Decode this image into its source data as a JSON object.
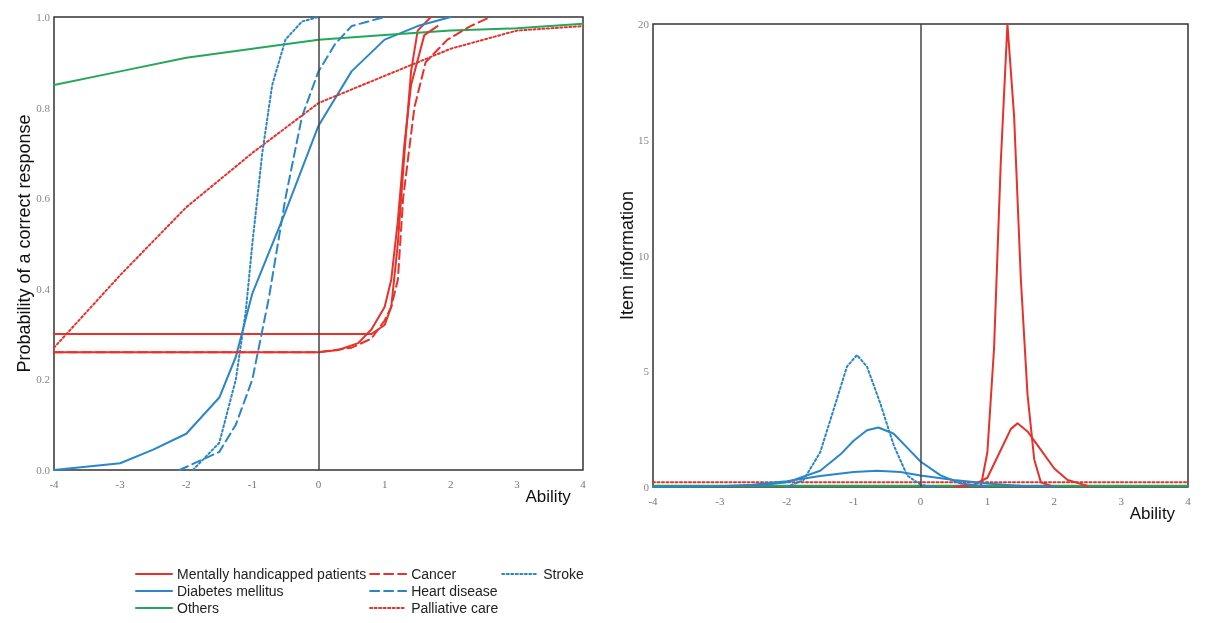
{
  "chart_data": [
    {
      "type": "line",
      "ylabel": "Probability of a correct response",
      "xlabel": "Ability",
      "xlim": [
        -4,
        4
      ],
      "xticks": [
        -4,
        -3,
        -2,
        -1,
        0,
        1,
        2,
        3,
        4
      ],
      "ylim": [
        0,
        1
      ],
      "yticks": [
        {
          "value": 0,
          "label": "0.0"
        },
        0.2,
        0.4,
        0.6,
        0.8,
        {
          "value": 1,
          "label": "1.0"
        }
      ],
      "legend": "bottom",
      "marker": "none",
      "grid": false,
      "series": [
        {
          "name": "Mentally handicapped patients",
          "color": "#e8312a",
          "line_style": "solid",
          "x": [
            -4,
            0,
            0.8,
            1.0,
            1.1,
            1.2,
            1.3,
            1.4,
            1.5,
            1.7
          ],
          "values": [
            0.3,
            0.3,
            0.3,
            0.32,
            0.36,
            0.5,
            0.7,
            0.88,
            0.97,
            1.0
          ]
        },
        {
          "name": "Diabetes mellitus",
          "color": "#2a86c8",
          "line_style": "solid",
          "x": [
            -4,
            -3,
            -2.5,
            -2,
            -1.5,
            -1.25,
            -1,
            -0.5,
            0,
            0.5,
            1,
            1.5,
            2
          ],
          "values": [
            0,
            0.015,
            0.045,
            0.08,
            0.16,
            0.25,
            0.39,
            0.57,
            0.76,
            0.88,
            0.95,
            0.98,
            1.0
          ]
        },
        {
          "name": "Others",
          "color": "#23a85a",
          "line_style": "solid",
          "x": [
            -4,
            -3,
            -2,
            -1,
            0,
            1,
            2,
            3,
            4
          ],
          "values": [
            0.85,
            0.88,
            0.91,
            0.93,
            0.95,
            0.96,
            0.97,
            0.975,
            0.985
          ]
        },
        {
          "name": "Cancer",
          "color": "#e8312a",
          "line_style": "dashed",
          "x": [
            -4,
            0,
            0.5,
            0.8,
            1.0,
            1.1,
            1.2,
            1.28,
            1.45,
            1.62,
            1.95,
            2.3,
            2.6
          ],
          "values": [
            0.26,
            0.26,
            0.27,
            0.29,
            0.33,
            0.36,
            0.42,
            0.6,
            0.8,
            0.9,
            0.95,
            0.98,
            1.0
          ]
        },
        {
          "name": "Heart disease",
          "color": "#2a86c8",
          "line_style": "dashed",
          "x": [
            -2.1,
            -1.5,
            -1.25,
            -1,
            -0.75,
            -0.5,
            -0.25,
            0,
            0.25,
            0.5,
            1
          ],
          "values": [
            0,
            0.04,
            0.1,
            0.2,
            0.38,
            0.6,
            0.78,
            0.88,
            0.94,
            0.98,
            1.0
          ]
        },
        {
          "name": "Palliative care",
          "color": "#e8312a",
          "line_style": "dotted",
          "x": [
            -4,
            -3,
            -2,
            -1,
            0,
            1,
            2,
            3,
            4
          ],
          "values": [
            0.27,
            0.43,
            0.58,
            0.7,
            0.81,
            0.87,
            0.93,
            0.97,
            0.98
          ]
        },
        {
          "name": "Stroke",
          "color": "#2a86c8",
          "line_style": "dotted",
          "x": [
            -1.9,
            -1.5,
            -1.25,
            -1.1,
            -1,
            -0.85,
            -0.7,
            -0.5,
            -0.25,
            0
          ],
          "values": [
            0,
            0.06,
            0.2,
            0.35,
            0.5,
            0.7,
            0.85,
            0.95,
            0.99,
            1.0
          ]
        },
        {
          "color": "#e8312a",
          "line_style": "solid",
          "x": [
            -4,
            0,
            0.3,
            0.6,
            0.8,
            1.0,
            1.1,
            1.2,
            1.3,
            1.4,
            1.6,
            1.8
          ],
          "values": [
            0.26,
            0.26,
            0.265,
            0.28,
            0.31,
            0.36,
            0.42,
            0.55,
            0.72,
            0.85,
            0.96,
            0.98
          ]
        }
      ],
      "ref_lines": [
        {
          "axis": "x",
          "value": 0
        }
      ]
    },
    {
      "type": "line",
      "ylabel": "Item information",
      "xlabel": "Ability",
      "xlim": [
        -4,
        4
      ],
      "xticks": [
        -4,
        -3,
        -2,
        -1,
        0,
        1,
        2,
        3,
        4
      ],
      "ylim": [
        0,
        20
      ],
      "yticks": [
        0,
        5,
        10,
        15,
        20
      ],
      "legend": false,
      "marker": "none",
      "grid": false,
      "series": [
        {
          "color": "#23a85a",
          "line_style": "solid",
          "x": [
            -4,
            -2,
            0,
            2,
            4
          ],
          "values": [
            0.05,
            0.05,
            0.05,
            0.05,
            0.05
          ]
        },
        {
          "color": "#e8312a",
          "line_style": "dotted",
          "x": [
            -4,
            -2,
            0,
            2,
            4
          ],
          "values": [
            0.2,
            0.2,
            0.2,
            0.2,
            0.2
          ]
        },
        {
          "color": "#e8312a",
          "line_style": "solid",
          "x": [
            0.9,
            1.0,
            1.1,
            1.2,
            1.3,
            1.4,
            1.5,
            1.6,
            1.7,
            1.8,
            2
          ],
          "values": [
            0,
            1.5,
            6,
            14,
            20,
            16,
            9,
            4,
            1.2,
            0.2,
            0
          ]
        },
        {
          "color": "#e8312a",
          "line_style": "solid",
          "x": [
            0.5,
            0.8,
            1.0,
            1.2,
            1.35,
            1.45,
            1.6,
            1.8,
            2.0,
            2.2,
            2.5
          ],
          "values": [
            0,
            0.1,
            0.4,
            1.6,
            2.5,
            2.75,
            2.4,
            1.6,
            0.8,
            0.3,
            0.05
          ]
        },
        {
          "color": "#2a86c8",
          "line_style": "solid",
          "x": [
            -2.5,
            -2,
            -1.5,
            -1.2,
            -1,
            -0.8,
            -0.63,
            -0.4,
            -0.2,
            0,
            0.3,
            0.6,
            1
          ],
          "values": [
            0.05,
            0.2,
            0.7,
            1.4,
            2.0,
            2.45,
            2.57,
            2.3,
            1.7,
            1.1,
            0.5,
            0.15,
            0.02
          ]
        },
        {
          "color": "#2a86c8",
          "line_style": "solid",
          "x": [
            -4,
            -3,
            -2.5,
            -2,
            -1.5,
            -1,
            -0.65,
            -0.3,
            0,
            0.5,
            1,
            1.5,
            2
          ],
          "values": [
            0,
            0.03,
            0.1,
            0.25,
            0.48,
            0.65,
            0.7,
            0.65,
            0.5,
            0.3,
            0.15,
            0.05,
            0.02
          ]
        },
        {
          "color": "#2a86c8",
          "line_style": "dotted",
          "x": [
            -2,
            -1.75,
            -1.5,
            -1.25,
            -1.1,
            -0.95,
            -0.8,
            -0.6,
            -0.4,
            -0.2,
            0,
            0.2
          ],
          "values": [
            0,
            0.3,
            1.5,
            3.8,
            5.2,
            5.7,
            5.2,
            3.6,
            1.8,
            0.5,
            0.1,
            0
          ]
        }
      ],
      "ref_lines": [
        {
          "axis": "x",
          "value": 0
        }
      ]
    }
  ]
}
